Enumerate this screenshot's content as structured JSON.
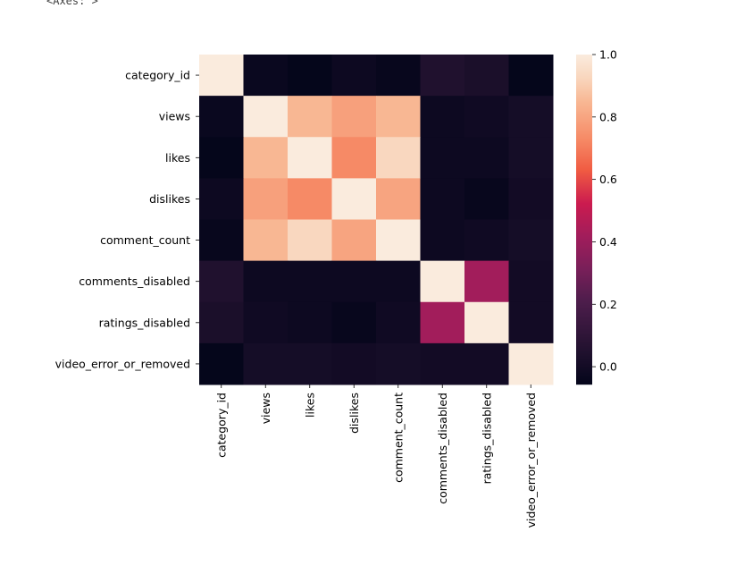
{
  "output_text": "<Axes: >",
  "chart_data": {
    "type": "heatmap",
    "colormap": "rocket",
    "row_labels": [
      "category_id",
      "views",
      "likes",
      "dislikes",
      "comment_count",
      "comments_disabled",
      "ratings_disabled",
      "video_error_or_removed"
    ],
    "col_labels": [
      "category_id",
      "views",
      "likes",
      "dislikes",
      "comment_count",
      "comments_disabled",
      "ratings_disabled",
      "video_error_or_removed"
    ],
    "values": [
      [
        1.0,
        -0.03,
        -0.05,
        -0.02,
        -0.04,
        0.05,
        0.03,
        -0.05
      ],
      [
        -0.03,
        1.0,
        0.85,
        0.79,
        0.85,
        -0.02,
        -0.01,
        0.01
      ],
      [
        -0.05,
        0.85,
        1.0,
        0.73,
        0.93,
        -0.02,
        -0.02,
        0.01
      ],
      [
        -0.02,
        0.79,
        0.73,
        1.0,
        0.8,
        -0.02,
        -0.04,
        0.0
      ],
      [
        -0.04,
        0.85,
        0.93,
        0.8,
        1.0,
        -0.02,
        -0.01,
        0.01
      ],
      [
        0.05,
        -0.02,
        -0.02,
        -0.02,
        -0.02,
        1.0,
        0.42,
        0.0
      ],
      [
        0.03,
        -0.01,
        -0.02,
        -0.04,
        -0.01,
        0.42,
        1.0,
        0.0
      ],
      [
        -0.05,
        0.01,
        0.01,
        0.0,
        0.01,
        0.0,
        0.0,
        1.0
      ]
    ],
    "vmin": -0.057,
    "vmax": 1.0,
    "colorbar_ticks": [
      "0.0",
      "0.2",
      "0.4",
      "0.6",
      "0.8",
      "1.0"
    ]
  }
}
